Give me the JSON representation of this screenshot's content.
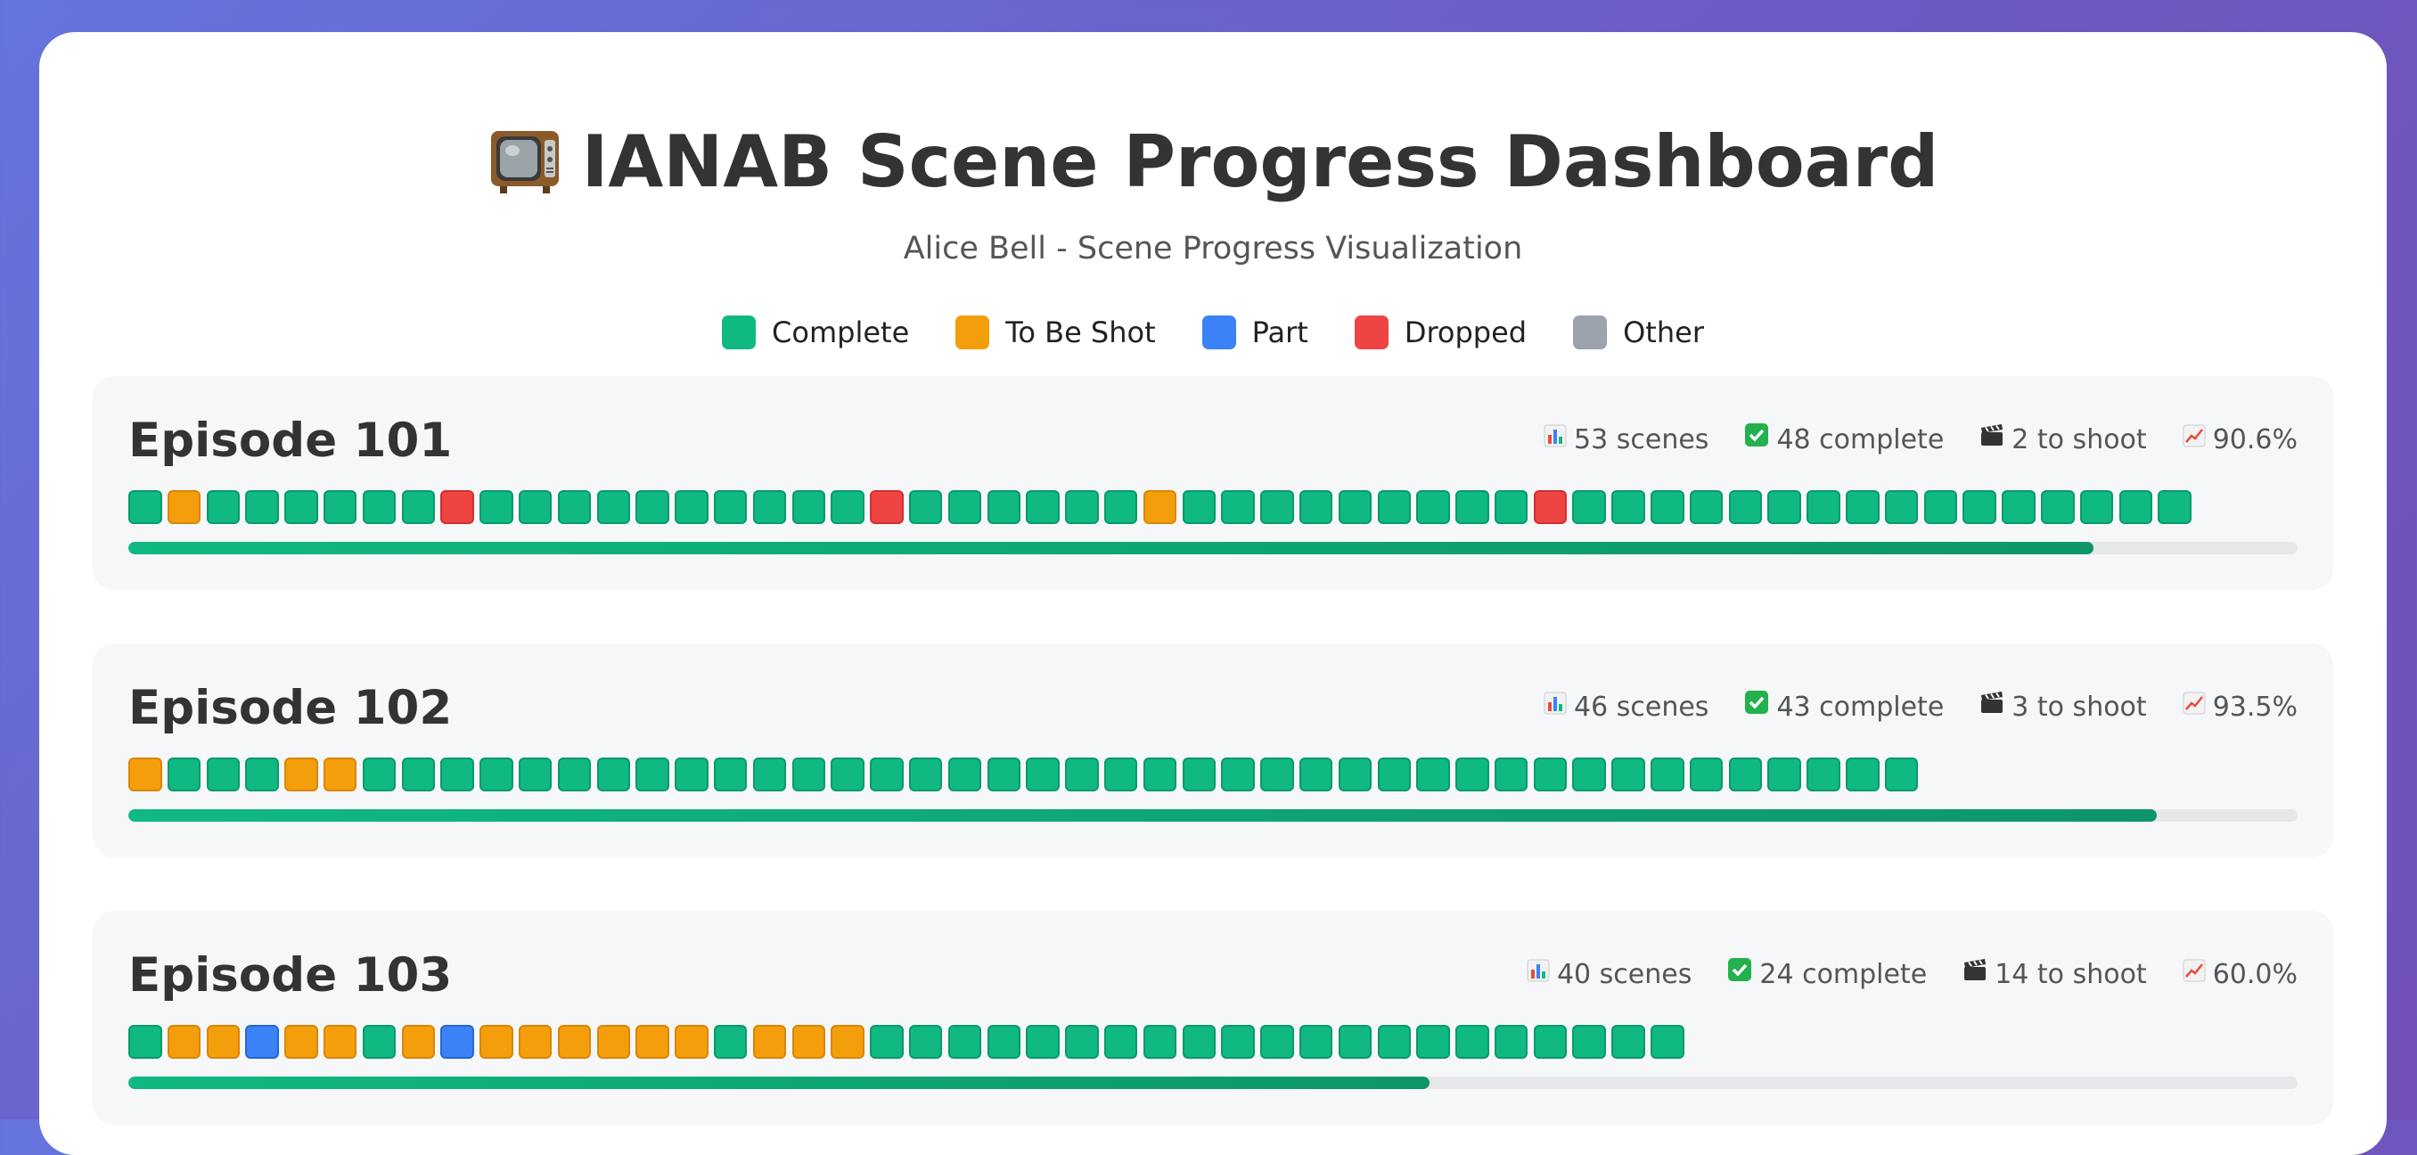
{
  "header": {
    "title": "IANAB Scene Progress Dashboard",
    "title_icon": "television-icon",
    "subtitle": "Alice Bell - Scene Progress Visualization"
  },
  "legend": [
    {
      "label": "Complete",
      "color": "#10b981",
      "status": "complete"
    },
    {
      "label": "To Be Shot",
      "color": "#f59e0b",
      "status": "shoot"
    },
    {
      "label": "Part",
      "color": "#3b82f6",
      "status": "part"
    },
    {
      "label": "Dropped",
      "color": "#ef4444",
      "status": "dropped"
    },
    {
      "label": "Other",
      "color": "#9ca3af",
      "status": "other"
    }
  ],
  "episodes": [
    {
      "title": "Episode 101",
      "scenes_text": "53 scenes",
      "complete_text": "48 complete",
      "shoot_text": "2 to shoot",
      "percent_text": "90.6%",
      "progress": 0.906,
      "scenes": [
        "C",
        "S",
        "C",
        "C",
        "C",
        "C",
        "C",
        "C",
        "D",
        "C",
        "C",
        "C",
        "C",
        "C",
        "C",
        "C",
        "C",
        "C",
        "C",
        "D",
        "C",
        "C",
        "C",
        "C",
        "C",
        "C",
        "S",
        "C",
        "C",
        "C",
        "C",
        "C",
        "C",
        "C",
        "C",
        "C",
        "D",
        "C",
        "C",
        "C",
        "C",
        "C",
        "C",
        "C",
        "C",
        "C",
        "C",
        "C",
        "C",
        "C",
        "C",
        "C",
        "C"
      ]
    },
    {
      "title": "Episode 102",
      "scenes_text": "46 scenes",
      "complete_text": "43 complete",
      "shoot_text": "3 to shoot",
      "percent_text": "93.5%",
      "progress": 0.935,
      "scenes": [
        "S",
        "C",
        "C",
        "C",
        "S",
        "S",
        "C",
        "C",
        "C",
        "C",
        "C",
        "C",
        "C",
        "C",
        "C",
        "C",
        "C",
        "C",
        "C",
        "C",
        "C",
        "C",
        "C",
        "C",
        "C",
        "C",
        "C",
        "C",
        "C",
        "C",
        "C",
        "C",
        "C",
        "C",
        "C",
        "C",
        "C",
        "C",
        "C",
        "C",
        "C",
        "C",
        "C",
        "C",
        "C",
        "C"
      ]
    },
    {
      "title": "Episode 103",
      "scenes_text": "40 scenes",
      "complete_text": "24 complete",
      "shoot_text": "14 to shoot",
      "percent_text": "60.0%",
      "progress": 0.6,
      "scenes": [
        "C",
        "S",
        "S",
        "P",
        "S",
        "S",
        "C",
        "S",
        "P",
        "S",
        "S",
        "S",
        "S",
        "S",
        "S",
        "C",
        "S",
        "S",
        "S",
        "C",
        "C",
        "C",
        "C",
        "C",
        "C",
        "C",
        "C",
        "C",
        "C",
        "C",
        "C",
        "C",
        "C",
        "C",
        "C",
        "C",
        "C",
        "C",
        "C",
        "C"
      ]
    }
  ],
  "stat_icons": {
    "scenes": "bar-chart-icon",
    "complete": "check-mark-icon",
    "shoot": "clapperboard-icon",
    "percent": "trend-chart-icon"
  }
}
